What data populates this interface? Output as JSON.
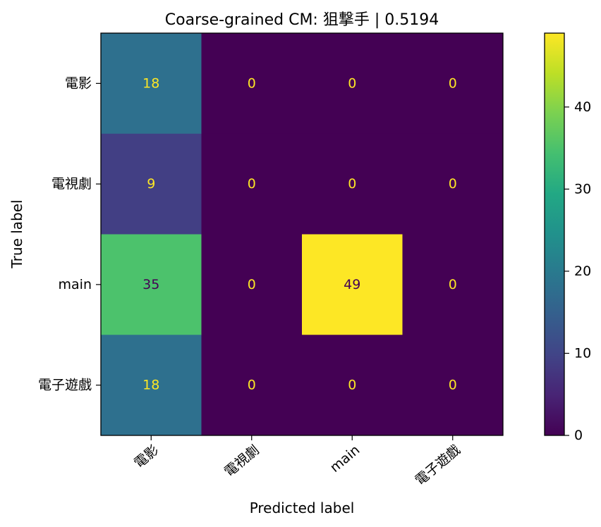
{
  "chart_data": {
    "type": "heatmap",
    "title": "Coarse-grained CM: 狙撃手 | 0.5194",
    "xlabel": "Predicted label",
    "ylabel": "True label",
    "x_categories": [
      "電影",
      "電視劇",
      "main",
      "電子遊戲"
    ],
    "y_categories": [
      "電影",
      "電視劇",
      "main",
      "電子遊戲"
    ],
    "matrix": [
      [
        18,
        0,
        0,
        0
      ],
      [
        9,
        0,
        0,
        0
      ],
      [
        35,
        0,
        49,
        0
      ],
      [
        18,
        0,
        0,
        0
      ]
    ],
    "colormap": "viridis",
    "value_range": [
      0,
      49
    ],
    "colorbar_ticks": [
      0,
      10,
      20,
      30,
      40
    ],
    "colors": {
      "text_on_dark": "#fde725",
      "text_on_light": "#440154"
    }
  }
}
